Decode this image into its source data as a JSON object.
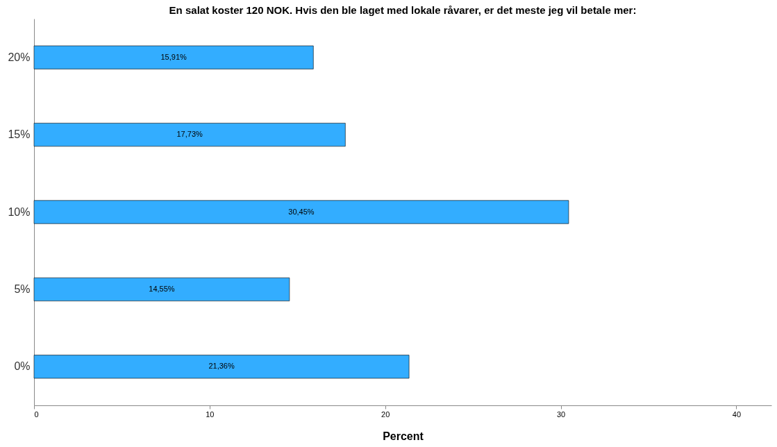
{
  "chart_data": {
    "type": "bar",
    "orientation": "horizontal",
    "title": "En salat koster 120 NOK. Hvis den ble laget med lokale råvarer, er det meste jeg vil betale mer:",
    "xlabel": "Percent",
    "categories": [
      "20%",
      "15%",
      "10%",
      "5%",
      "0%"
    ],
    "values": [
      15.91,
      17.73,
      30.45,
      14.55,
      21.36
    ],
    "value_labels": [
      "15,91%",
      "17,73%",
      "30,45%",
      "14,55%",
      "21,36%"
    ],
    "color": "#33adff",
    "xlim": [
      0,
      42
    ],
    "xticks": [
      0,
      10,
      20,
      30,
      40
    ],
    "grid": false
  }
}
